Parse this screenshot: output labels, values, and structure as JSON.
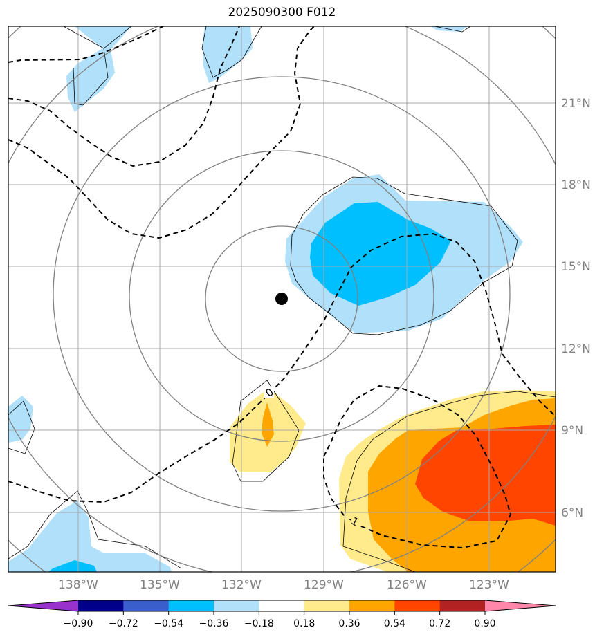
{
  "title": "2025090300 F012",
  "longitude_labels": [
    "138°W",
    "135°W",
    "132°W",
    "129°W",
    "126°W",
    "123°W"
  ],
  "latitude_labels": [
    "21°N",
    "18°N",
    "15°N",
    "12°N",
    "9°N",
    "6°N"
  ],
  "contour_labels": [
    "0",
    "-1"
  ],
  "colorbar": {
    "ticks": [
      "−0.90",
      "−0.72",
      "−0.54",
      "−0.36",
      "−0.18",
      "0.18",
      "0.36",
      "0.54",
      "0.72",
      "0.90"
    ],
    "colors": [
      "#9932cc",
      "#00008b",
      "#3a5fcd",
      "#00bfff",
      "#b0e0fa",
      "#ffffff",
      "#ffeb8c",
      "#ffa500",
      "#ff4500",
      "#b22222",
      "#ff88aa"
    ]
  },
  "center_marker": {
    "lon": -130.5,
    "lat": 13.8
  },
  "colors": {
    "light_blue": "#b0e0fa",
    "deep_sky_blue": "#00bfff",
    "light_yellow": "#ffeb8c",
    "orange": "#ffa500",
    "orange_red": "#ff4500",
    "grid": "#a0a0a0",
    "range_rings": "#808080"
  }
}
